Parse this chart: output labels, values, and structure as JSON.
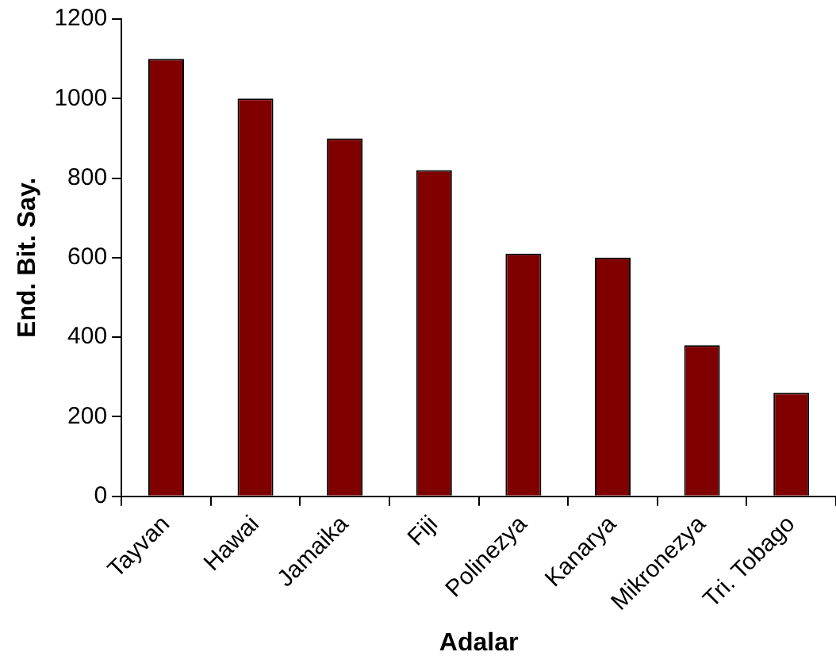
{
  "chart_data": {
    "type": "bar",
    "xlabel": "Adalar",
    "ylabel": "End. Bit. Say.",
    "categories": [
      "Tayvan",
      "Hawai",
      "Jamaika",
      "Fiji",
      "Polinezya",
      "Kanarya",
      "Mikronezya",
      "Tri. Tobago"
    ],
    "values": [
      1100,
      1000,
      900,
      820,
      610,
      600,
      380,
      260
    ],
    "color": "#800000",
    "ylim": [
      0,
      1200
    ],
    "yticks": [
      0,
      200,
      400,
      600,
      800,
      1000,
      1200
    ],
    "grid": false,
    "legend": false
  }
}
